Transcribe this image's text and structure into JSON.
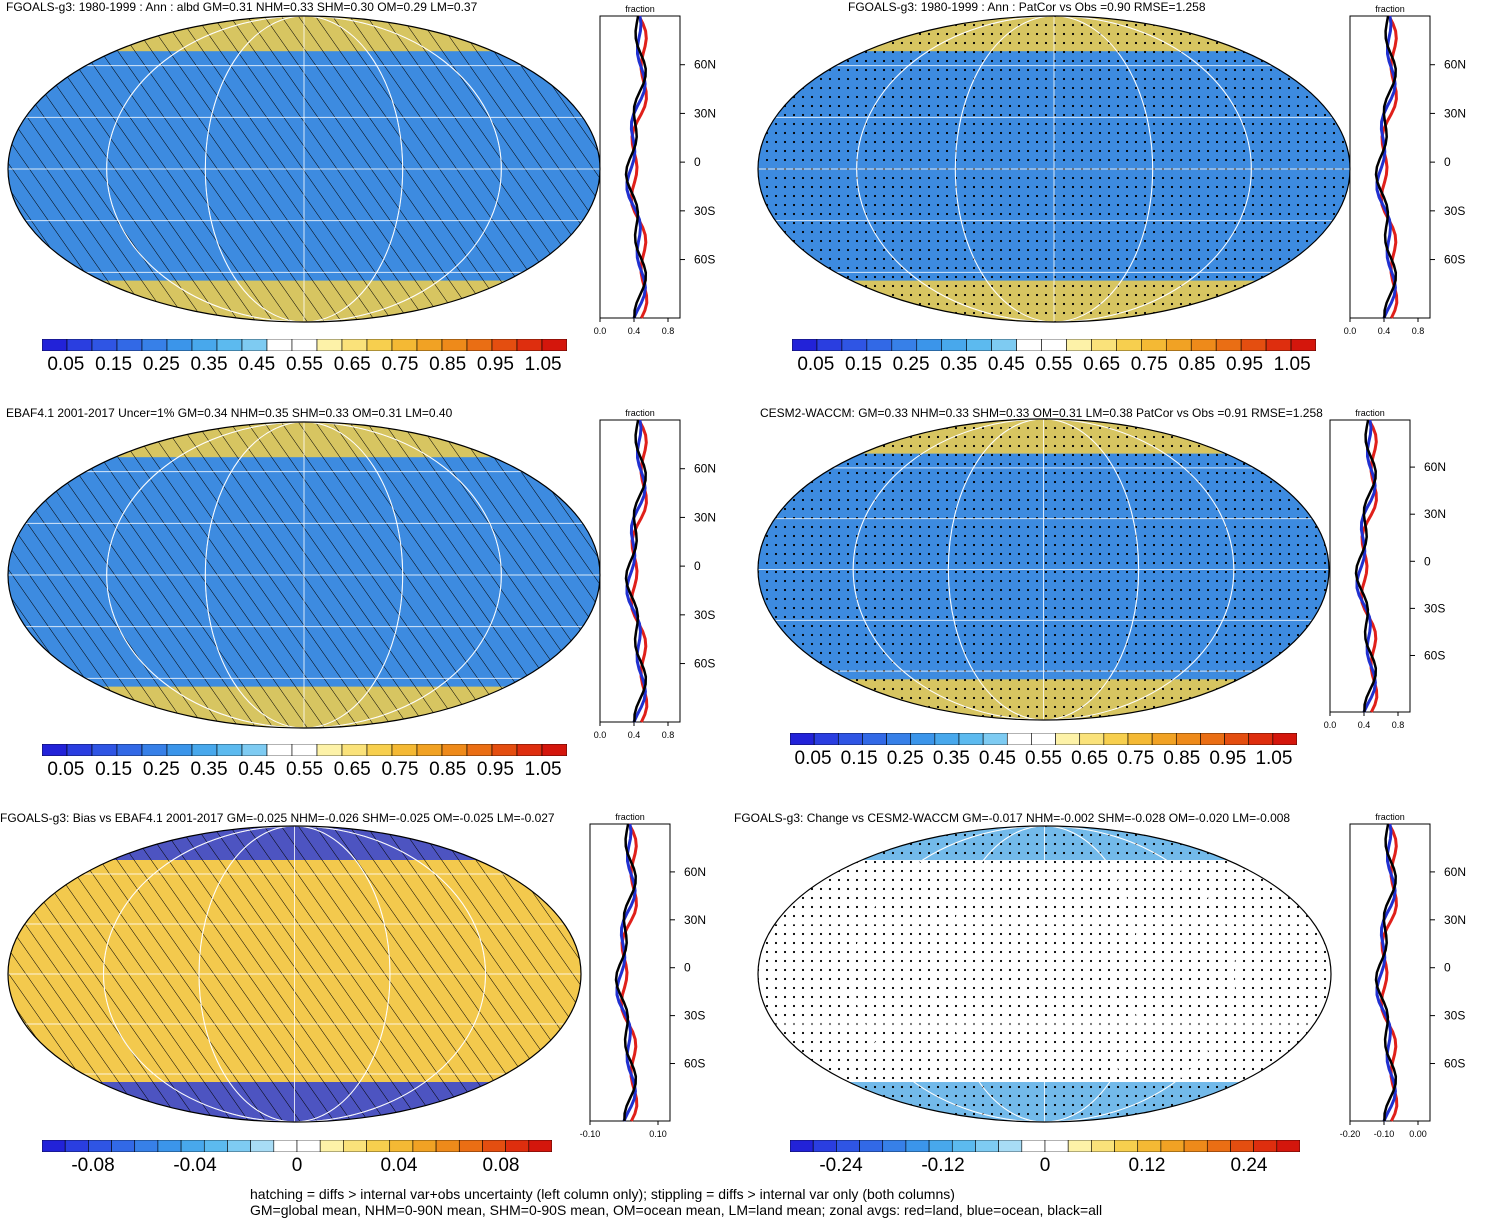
{
  "panels": [
    {
      "id": "p1",
      "title": "FGOALS-g3: 1980-1999 : Ann : albd GM=0.31 NHM=0.33 SHM=0.30 OM=0.29 LM=0.37",
      "base_color": "#3d8be0",
      "band_color": "#f2cf4a",
      "overlay": "hatching",
      "zonal_axis_label": "fraction",
      "zonal_xticks": [
        "0.0",
        "0.4",
        "0.8"
      ],
      "lat_ticks": [
        "60N",
        "30N",
        "0",
        "30S",
        "60S"
      ],
      "colorbar_labels": [
        "0.05",
        "0.15",
        "0.25",
        "0.35",
        "0.45",
        "0.55",
        "0.65",
        "0.75",
        "0.85",
        "0.95",
        "1.05"
      ]
    },
    {
      "id": "p2",
      "title": "FGOALS-g3: 1980-1999 : Ann : PatCor vs Obs =0.90 RMSE=1.258",
      "base_color": "#3d8be0",
      "band_color": "#f2cf4a",
      "overlay": "stippling",
      "zonal_axis_label": "fraction",
      "zonal_xticks": [
        "0.0",
        "0.4",
        "0.8"
      ],
      "lat_ticks": [
        "60N",
        "30N",
        "0",
        "30S",
        "60S"
      ],
      "colorbar_labels": [
        "0.05",
        "0.15",
        "0.25",
        "0.35",
        "0.45",
        "0.55",
        "0.65",
        "0.75",
        "0.85",
        "0.95",
        "1.05"
      ]
    },
    {
      "id": "p3",
      "title": "EBAF4.1 2001-2017 Uncer=1% GM=0.34 NHM=0.35 SHM=0.33 OM=0.31 LM=0.40",
      "base_color": "#3d8be0",
      "band_color": "#f2cf4a",
      "overlay": "hatching",
      "zonal_axis_label": "fraction",
      "zonal_xticks": [
        "0.0",
        "0.4",
        "0.8"
      ],
      "lat_ticks": [
        "60N",
        "30N",
        "0",
        "30S",
        "60S"
      ],
      "colorbar_labels": [
        "0.05",
        "0.15",
        "0.25",
        "0.35",
        "0.45",
        "0.55",
        "0.65",
        "0.75",
        "0.85",
        "0.95",
        "1.05"
      ]
    },
    {
      "id": "p4",
      "title": "CESM2-WACCM: GM=0.33 NHM=0.33 SHM=0.33 OM=0.31 LM=0.38 PatCor vs Obs =0.91 RMSE=1.258",
      "base_color": "#3d8be0",
      "band_color": "#f2cf4a",
      "overlay": "stippling",
      "zonal_axis_label": "fraction",
      "zonal_xticks": [
        "0.0",
        "0.4",
        "0.8"
      ],
      "lat_ticks": [
        "60N",
        "30N",
        "0",
        "30S",
        "60S"
      ],
      "colorbar_labels": [
        "0.05",
        "0.15",
        "0.25",
        "0.35",
        "0.45",
        "0.55",
        "0.65",
        "0.75",
        "0.85",
        "0.95",
        "1.05"
      ]
    },
    {
      "id": "p5",
      "title": "FGOALS-g3: Bias vs EBAF4.1 2001-2017 GM=-0.025 NHM=-0.026 SHM=-0.025 OM=-0.025 LM=-0.027",
      "base_color": "#f3c94d",
      "band_color": "#2f3fd6",
      "overlay": "hatching",
      "zonal_axis_label": "fraction",
      "zonal_xticks": [
        "-0.10",
        "0.10"
      ],
      "lat_ticks": [
        "60N",
        "30N",
        "0",
        "30S",
        "60S"
      ],
      "colorbar_labels": [
        "-0.08",
        "-0.04",
        "0",
        "0.04",
        "0.08"
      ]
    },
    {
      "id": "p6",
      "title": "FGOALS-g3: Change vs CESM2-WACCM GM=-0.017 NHM=-0.002 SHM=-0.028 OM=-0.020 LM=-0.008",
      "base_color": "#ffffff",
      "band_color": "#5aaee6",
      "overlay": "stippling",
      "zonal_axis_label": "fraction",
      "zonal_xticks": [
        "-0.20",
        "-0.10",
        "0.00"
      ],
      "lat_ticks": [
        "60N",
        "30N",
        "0",
        "30S",
        "60S"
      ],
      "colorbar_labels": [
        "-0.24",
        "-0.12",
        "0",
        "0.12",
        "0.24"
      ]
    }
  ],
  "palette_abs": [
    "#2222d8",
    "#2a3ee0",
    "#2f55e4",
    "#3269e6",
    "#3780e8",
    "#3b95ea",
    "#48a8ec",
    "#5cbaef",
    "#7ecbf2",
    "#ffffff",
    "#ffffff",
    "#fdf2a8",
    "#fae27a",
    "#f7cf4e",
    "#f4b934",
    "#f1a224",
    "#ee8a1a",
    "#ea6e14",
    "#e44e10",
    "#de2e0e",
    "#d4160c"
  ],
  "palette_div": [
    "#2222d8",
    "#2a3ee0",
    "#2f55e4",
    "#3269e6",
    "#3780e8",
    "#3b95ea",
    "#48a8ec",
    "#5cbaef",
    "#7ecbf2",
    "#a8dcf5",
    "#ffffff",
    "#ffffff",
    "#fdf2a8",
    "#fae27a",
    "#f7cf4e",
    "#f4b934",
    "#f1a224",
    "#ee8a1a",
    "#ea6e14",
    "#e44e10",
    "#de2e0e",
    "#d4160c"
  ],
  "footer": {
    "line1": "hatching = diffs > internal var+obs uncertainty (left column only); stippling = diffs > internal var only (both columns)",
    "line2": "GM=global mean, NHM=0-90N mean, SHM=0-90S mean, OM=ocean mean, LM=land mean; zonal avgs: red=land, blue=ocean, black=all"
  }
}
